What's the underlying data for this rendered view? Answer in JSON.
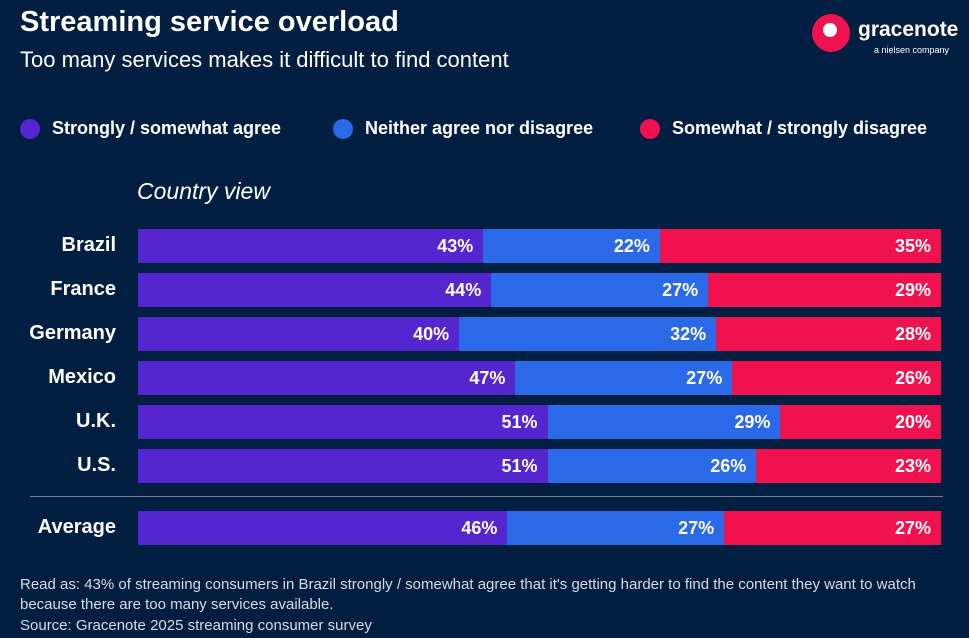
{
  "header": {
    "title": "Streaming service overload",
    "subtitle": "Too many services makes it difficult to find content",
    "logo": "gracenote",
    "logo_sub": "a nielsen company"
  },
  "chart_data": {
    "type": "bar",
    "stacked": true,
    "orientation": "horizontal",
    "title": "Streaming service overload",
    "subtitle": "Country view",
    "categories": [
      "Brazil",
      "France",
      "Germany",
      "Mexico",
      "U.K.",
      "U.S.",
      "Average"
    ],
    "series": [
      {
        "name": "Strongly / somewhat agree",
        "color": "#5526d0",
        "values": [
          43,
          44,
          40,
          47,
          51,
          51,
          46
        ]
      },
      {
        "name": "Neither agree nor disagree",
        "color": "#2a6ae8",
        "values": [
          22,
          27,
          32,
          27,
          29,
          26,
          27
        ]
      },
      {
        "name": "Somewhat / strongly disagree",
        "color": "#f0124f",
        "values": [
          35,
          29,
          28,
          26,
          20,
          23,
          27
        ]
      }
    ],
    "xlim": [
      0,
      100
    ],
    "legend": "top",
    "unit": "%"
  },
  "footer": {
    "note": "Read as: 43% of streaming consumers in Brazil strongly / somewhat agree that it's getting harder to find the content they want to watch because there are too many services available.",
    "source": "Source: Gracenote 2025 streaming consumer survey"
  }
}
